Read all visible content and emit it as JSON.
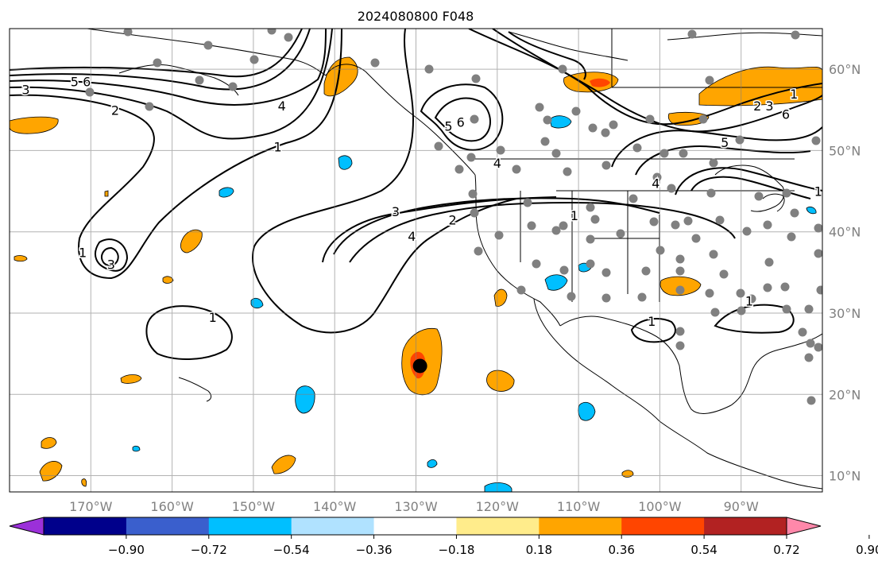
{
  "title": "2024080800 F048",
  "map": {
    "lon_range": [
      -180,
      -80
    ],
    "lat_range": [
      8,
      65
    ],
    "lon_ticks": [
      -170,
      -160,
      -150,
      -140,
      -130,
      -120,
      -110,
      -100,
      -90
    ],
    "lat_ticks": [
      10,
      20,
      30,
      40,
      50,
      60
    ],
    "lon_tick_labels": [
      "170°W",
      "160°W",
      "150°W",
      "140°W",
      "130°W",
      "120°W",
      "110°W",
      "100°W",
      "90°W"
    ],
    "lat_tick_labels": [
      "10°N",
      "20°N",
      "30°N",
      "40°N",
      "50°N",
      "60°N"
    ],
    "grid": true,
    "storm_center": {
      "lon": -129.5,
      "lat": 23.5
    }
  },
  "colorbar": {
    "colors": [
      "#9b30d9",
      "#00008b",
      "#3a5fcd",
      "#00bfff",
      "#b0e2ff",
      "#ffffff",
      "#ffec8b",
      "#ffa500",
      "#ff4500",
      "#b22222",
      "#ff88aa"
    ],
    "tick_labels": [
      "−0.90",
      "−0.72",
      "−0.54",
      "−0.36",
      "−0.18",
      "0.18",
      "0.36",
      "0.54",
      "0.72",
      "0.90"
    ],
    "extend": "both"
  },
  "contour_labels": [
    {
      "text": "3",
      "lon": -178,
      "lat": 57.5
    },
    {
      "text": "5",
      "lon": -172,
      "lat": 58.5
    },
    {
      "text": "6",
      "lon": -170.5,
      "lat": 58.5
    },
    {
      "text": "2",
      "lon": -167,
      "lat": 55
    },
    {
      "text": "4",
      "lon": -146.5,
      "lat": 55.5
    },
    {
      "text": "1",
      "lon": -147,
      "lat": 50.5
    },
    {
      "text": "1",
      "lon": -171,
      "lat": 37.5
    },
    {
      "text": "3",
      "lon": -167.5,
      "lat": 36
    },
    {
      "text": "1",
      "lon": -155,
      "lat": 29.5
    },
    {
      "text": "3",
      "lon": -132.5,
      "lat": 42.5
    },
    {
      "text": "4",
      "lon": -130.5,
      "lat": 39.5
    },
    {
      "text": "2",
      "lon": -125.5,
      "lat": 41.5
    },
    {
      "text": "5",
      "lon": -126,
      "lat": 53
    },
    {
      "text": "6",
      "lon": -124.5,
      "lat": 53.5
    },
    {
      "text": "4",
      "lon": -120,
      "lat": 48.5
    },
    {
      "text": "1",
      "lon": -110.5,
      "lat": 42
    },
    {
      "text": "4",
      "lon": -100.5,
      "lat": 46
    },
    {
      "text": "5",
      "lon": -92,
      "lat": 51
    },
    {
      "text": "2",
      "lon": -88,
      "lat": 55.5
    },
    {
      "text": "3",
      "lon": -86.5,
      "lat": 55.5
    },
    {
      "text": "6",
      "lon": -84.5,
      "lat": 54.5
    },
    {
      "text": "1",
      "lon": -83.5,
      "lat": 57
    },
    {
      "text": "1",
      "lon": -101,
      "lat": 29
    },
    {
      "text": "1",
      "lon": -89,
      "lat": 31.5
    },
    {
      "text": "1",
      "lon": -80.5,
      "lat": 45
    }
  ]
}
